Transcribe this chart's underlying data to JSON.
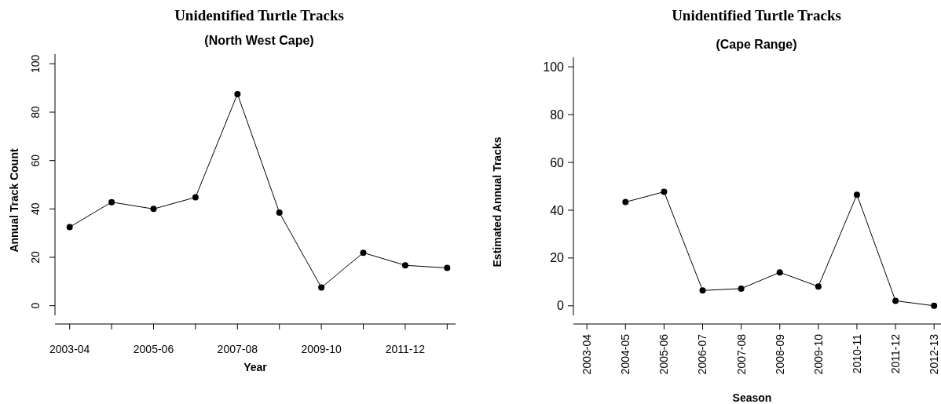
{
  "chart_data": [
    {
      "type": "line",
      "title": "Unidentified Turtle Tracks",
      "subtitle": "(North West Cape)",
      "xlabel": "Year",
      "ylabel": "Annual Track Count",
      "categories": [
        "2003-04",
        null,
        "2005-06",
        null,
        "2007-08",
        null,
        "2009-10",
        null,
        "2011-12",
        null
      ],
      "series": [
        {
          "color": "#000000",
          "values": [
            32.5,
            42.8,
            40,
            44.8,
            87.5,
            38.5,
            7.5,
            21.9,
            16.7,
            15.6
          ]
        }
      ],
      "ylim": [
        -4,
        104
      ],
      "yticks": [
        0,
        20,
        40,
        60,
        80,
        100
      ],
      "marker": "circle",
      "line_style": "solid"
    },
    {
      "type": "line",
      "title": "Unidentified Turtle Tracks",
      "subtitle": "(Cape Range)",
      "xlabel": "Season",
      "ylabel": "Estimated Annual Tracks",
      "categories": [
        "2003-04",
        "2004-05",
        "2005-06",
        "2006-07",
        "2007-08",
        "2008-09",
        "2009-10",
        "2010-11",
        "2011-12",
        "2012-13"
      ],
      "series": [
        {
          "color": "#000000",
          "values": [
            null,
            43.4,
            47.7,
            6.4,
            7.2,
            14.0,
            8.1,
            46.5,
            2.1,
            0
          ]
        }
      ],
      "ylim": [
        -4,
        104
      ],
      "yticks": [
        0,
        20,
        40,
        60,
        80,
        100
      ],
      "marker": "circle",
      "line_style": "solid"
    }
  ]
}
